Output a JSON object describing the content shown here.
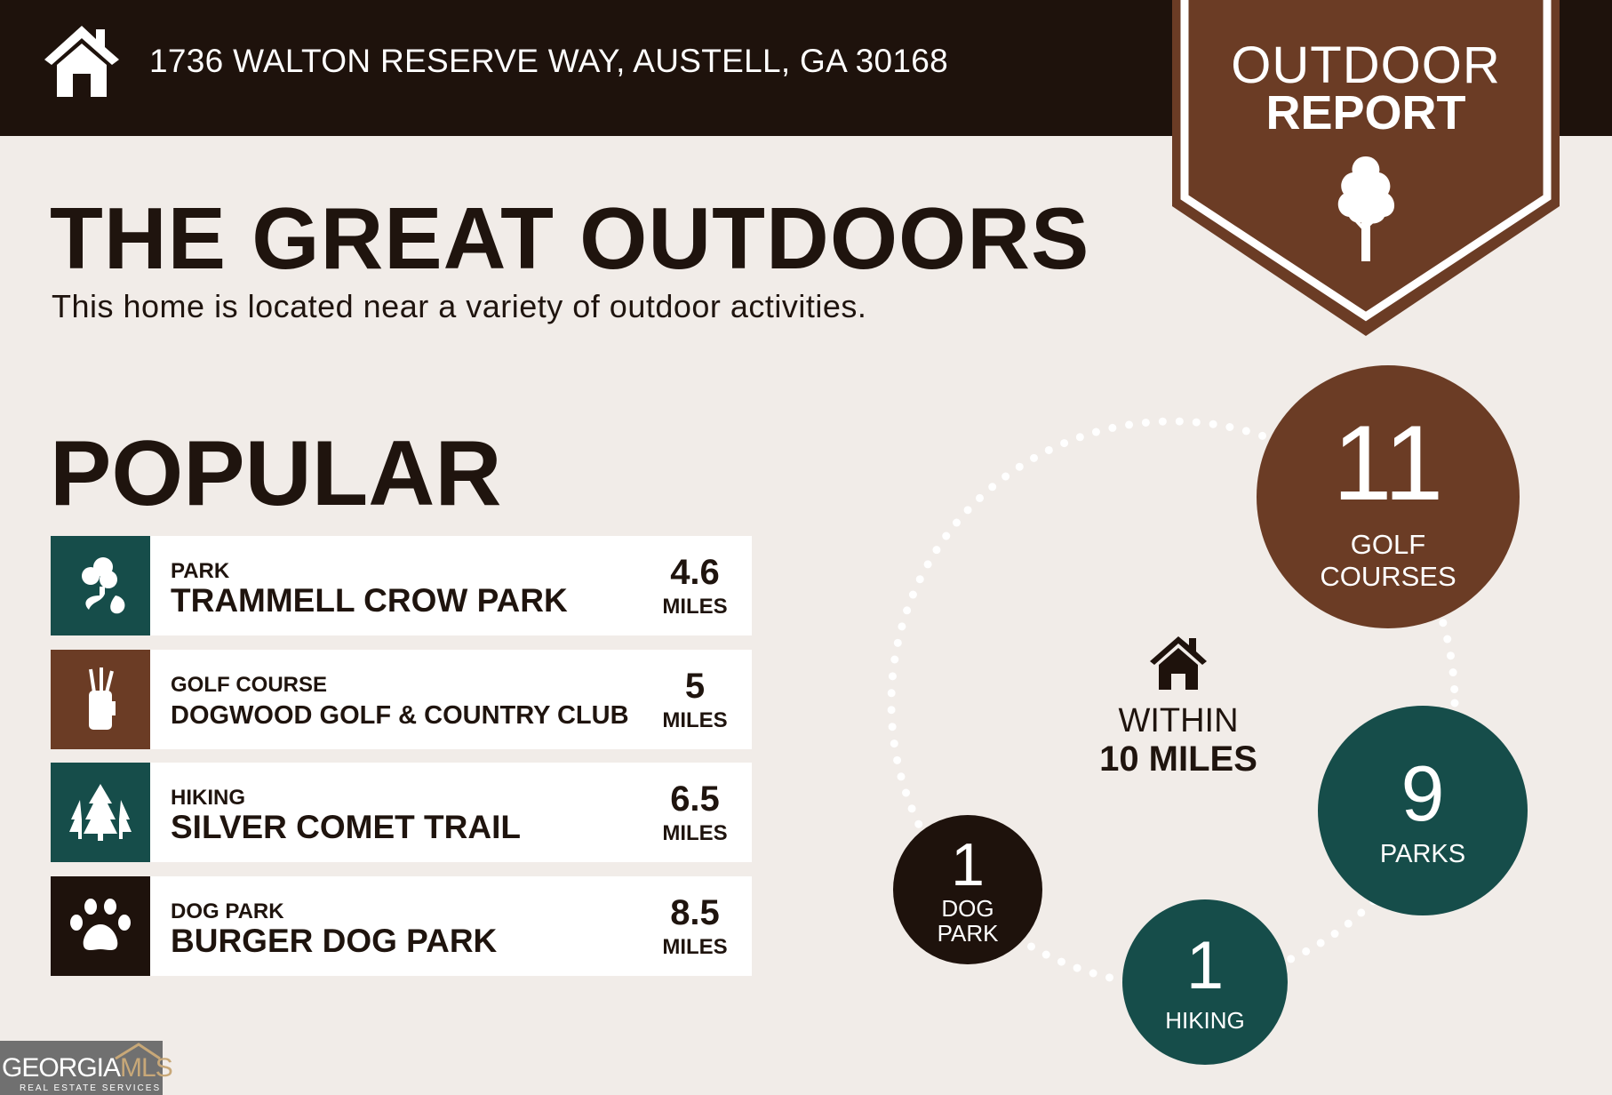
{
  "header": {
    "address": "1736 WALTON RESERVE WAY, AUSTELL, GA 30168",
    "icon": "house-icon"
  },
  "badge": {
    "line1": "OUTDOOR",
    "line2": "REPORT",
    "icon": "tree-icon"
  },
  "title": "THE GREAT OUTDOORS",
  "subtitle": "This home is located near a variety of outdoor activities.",
  "popular": {
    "heading": "POPULAR",
    "items": [
      {
        "category": "PARK",
        "name": "TRAMMELL CROW PARK",
        "distance": "4.6",
        "unit": "MILES",
        "icon": "park-icon",
        "color": "#164d4a"
      },
      {
        "category": "GOLF COURSE",
        "name": "DOGWOOD GOLF & COUNTRY CLUB",
        "distance": "5",
        "unit": "MILES",
        "icon": "golf-bag-icon",
        "color": "#6b3c25"
      },
      {
        "category": "HIKING",
        "name": "SILVER COMET TRAIL",
        "distance": "6.5",
        "unit": "MILES",
        "icon": "pine-trees-icon",
        "color": "#164d4a"
      },
      {
        "category": "DOG PARK",
        "name": "BURGER DOG PARK",
        "distance": "8.5",
        "unit": "MILES",
        "icon": "paw-icon",
        "color": "#1e120c"
      }
    ]
  },
  "nearby": {
    "center_line1": "WITHIN",
    "center_line2": "10 MILES",
    "counts": [
      {
        "count": "11",
        "label1": "GOLF",
        "label2": "COURSES",
        "color": "#6b3c25"
      },
      {
        "count": "9",
        "label1": "PARKS",
        "label2": "",
        "color": "#164d4a"
      },
      {
        "count": "1",
        "label1": "HIKING",
        "label2": "",
        "color": "#164d4a"
      },
      {
        "count": "1",
        "label1": "DOG",
        "label2": "PARK",
        "color": "#1e120c"
      }
    ]
  },
  "logo": {
    "text1": "GEORGIA",
    "text2": "MLS",
    "tagline": "REAL ESTATE SERVICES"
  }
}
